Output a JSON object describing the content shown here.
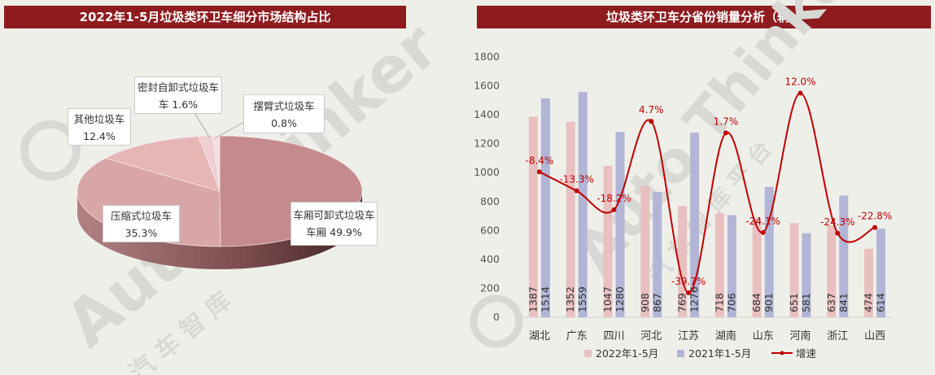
{
  "charts": [
    {
      "type": "pie",
      "title": "2022年1-5月垃圾类环卫车细分市场结构占比",
      "slices": [
        {
          "label": "车厢可卸式垃圾车",
          "value_text": "49.9%",
          "value": 49.9,
          "color": "#c48a8c"
        },
        {
          "label": "压缩式垃圾车",
          "value_text": "35.3%",
          "value": 35.3,
          "color": "#d9a6a7"
        },
        {
          "label": "其他垃圾车",
          "value_text": "12.4%",
          "value": 12.4,
          "color": "#e6b5b6"
        },
        {
          "label": "密封自卸式垃圾车",
          "value_text": "1.6%",
          "value": 1.6,
          "color": "#efcfcf"
        },
        {
          "label": "摆臂式垃圾车",
          "value_text": "0.8%",
          "value": 0.8,
          "color": "#f4e1e1"
        }
      ]
    },
    {
      "type": "bar-line",
      "title": "垃圾类环卫车分省份销量分析（辆）",
      "categories": [
        "湖北",
        "广东",
        "四川",
        "河北",
        "江苏",
        "湖南",
        "山东",
        "河南",
        "浙江",
        "山西"
      ],
      "series": [
        {
          "name": "2022年1-5月",
          "values": [
            1387,
            1352,
            1047,
            908,
            769,
            718,
            684,
            651,
            637,
            474
          ],
          "color": "#e9c0c0"
        },
        {
          "name": "2021年1-5月",
          "values": [
            1514,
            1559,
            1280,
            867,
            1276,
            706,
            901,
            581,
            841,
            614
          ],
          "color": "#b2b5d6"
        }
      ],
      "line": {
        "name": "增速",
        "values": [
          -8.4,
          -13.3,
          -18.2,
          4.7,
          -39.7,
          1.7,
          -24.1,
          12.0,
          -24.3,
          -22.8
        ],
        "labels": [
          "-8.4%",
          "-13.3%",
          "-18.2%",
          "4.7%",
          "-39.7%",
          "1.7%",
          "-24.1%",
          "12.0%",
          "-24.3%",
          "-22.8%"
        ],
        "color": "#c00000"
      },
      "y_ticks": [
        "0",
        "200",
        "400",
        "600",
        "800",
        "1000",
        "1200",
        "1400",
        "1600",
        "1800"
      ],
      "ylim": [
        0,
        1800
      ]
    }
  ],
  "watermarks": [
    "Auto Thinker",
    "汽 车 智 库",
    "Auto Thinker",
    "汽 车 智 库 平 台"
  ]
}
